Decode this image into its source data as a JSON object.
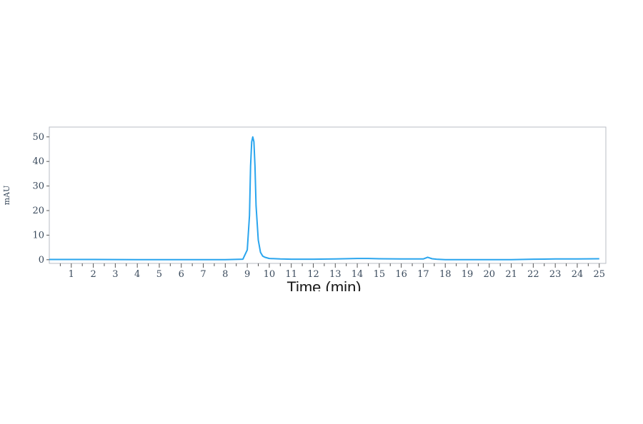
{
  "chart_data": {
    "type": "line",
    "title": "",
    "xlabel": "Time (min)",
    "ylabel": "mAU",
    "xlim": [
      0,
      25.3
    ],
    "ylim": [
      -1.5,
      54
    ],
    "x_ticks": [
      1,
      2,
      3,
      4,
      5,
      6,
      7,
      8,
      9,
      10,
      11,
      12,
      13,
      14,
      15,
      16,
      17,
      18,
      19,
      20,
      21,
      22,
      23,
      24,
      25
    ],
    "y_ticks": [
      0,
      10,
      20,
      30,
      40,
      50
    ],
    "grid": false,
    "line_color": "#2aa5ee",
    "series": [
      {
        "x": [
          0,
          2,
          4,
          6,
          8,
          8.8,
          9.0,
          9.1,
          9.15,
          9.2,
          9.25,
          9.3,
          9.35,
          9.4,
          9.5,
          9.6,
          9.7,
          9.8,
          10.0,
          10.5,
          11,
          12,
          13,
          14,
          14.5,
          15,
          16,
          17.0,
          17.2,
          17.4,
          17.6,
          18,
          19,
          20,
          21,
          22,
          23,
          24,
          25
        ],
        "y": [
          0.1,
          0.1,
          0,
          0,
          0,
          0.2,
          4,
          18,
          38,
          48,
          50,
          48,
          38,
          22,
          8,
          3,
          1.5,
          1,
          0.5,
          0.3,
          0.2,
          0.2,
          0.3,
          0.5,
          0.5,
          0.4,
          0.3,
          0.3,
          1.0,
          0.4,
          0.2,
          0,
          0,
          0,
          0,
          0.2,
          0.3,
          0.3,
          0.4
        ]
      }
    ]
  }
}
